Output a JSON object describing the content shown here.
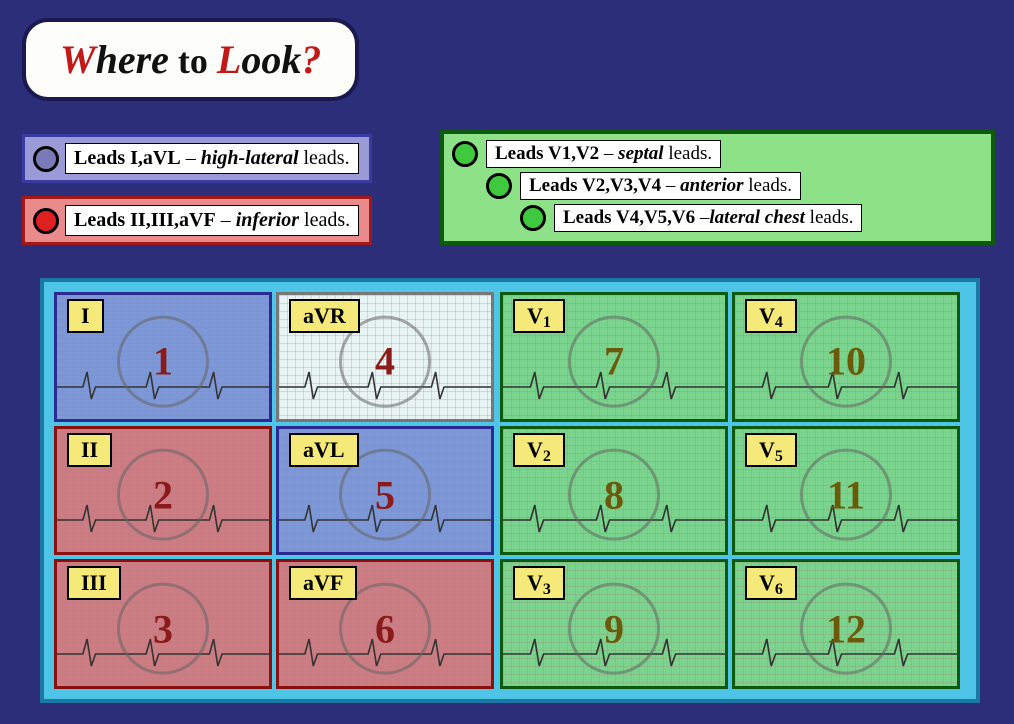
{
  "title": {
    "w": "W",
    "here": "here",
    "to": " to ",
    "l": "L",
    "ook": "ook",
    "q": "?",
    "color_red": "#c21818",
    "color_black": "#111"
  },
  "legend_purple": {
    "bg": "#9a9ad6",
    "border": "#3a3aa0",
    "dot_fill": "#7a7ab8",
    "text_leads": "Leads I,aVL",
    "text_dash": " – ",
    "text_em": "high-lateral",
    "text_end": " leads."
  },
  "legend_red": {
    "bg": "#eb8a8a",
    "border": "#a01818",
    "dot_fill": "#e02020",
    "text_leads": "Leads II,III,aVF",
    "text_dash": " – ",
    "text_em": "inferior",
    "text_end": " leads."
  },
  "legend_green": {
    "bg": "#8de187",
    "border": "#0e5a0e",
    "dot_fill": "#3ec93e",
    "lines": [
      {
        "leads": "Leads V1,V2",
        "dash": " – ",
        "em": "septal",
        "end": " leads.",
        "indent": 0
      },
      {
        "leads": "Leads V2,V3,V4",
        "dash": " – ",
        "em": "anterior",
        "end": " leads.",
        "indent": 34
      },
      {
        "leads": "Leads V4,V5,V6",
        "dash": " –",
        "em": "lateral chest",
        "end": " leads.",
        "indent": 68
      }
    ]
  },
  "colors": {
    "purple_bg": "rgba(140,140,210,0.78)",
    "purple_border": "#2a2a90",
    "red_bg": "rgba(232,110,110,0.82)",
    "red_border": "#8a1010",
    "white_bg": "rgba(250,248,244,0.9)",
    "white_border": "#777",
    "green_bg": "rgba(130,215,125,0.85)",
    "green_border": "#0d5a0d",
    "num_red": "#8b1a1a",
    "num_olive": "#6b5a0a"
  },
  "cells_left": [
    {
      "label": "I",
      "num": "1",
      "bg": "purple",
      "numcol": "num_red"
    },
    {
      "label": "aVR",
      "num": "4",
      "bg": "white",
      "numcol": "num_red"
    },
    {
      "label": "II",
      "num": "2",
      "bg": "red",
      "numcol": "num_red"
    },
    {
      "label": "aVL",
      "num": "5",
      "bg": "purple",
      "numcol": "num_red"
    },
    {
      "label": "III",
      "num": "3",
      "bg": "red",
      "numcol": "num_red"
    },
    {
      "label": "aVF",
      "num": "6",
      "bg": "red",
      "numcol": "num_red"
    }
  ],
  "cells_right": [
    {
      "label": "V1",
      "sub": "1",
      "num": "7",
      "bg": "green",
      "numcol": "num_olive"
    },
    {
      "label": "V4",
      "sub": "4",
      "num": "10",
      "bg": "green",
      "numcol": "num_olive"
    },
    {
      "label": "V2",
      "sub": "2",
      "num": "8",
      "bg": "green",
      "numcol": "num_olive"
    },
    {
      "label": "V5",
      "sub": "5",
      "num": "11",
      "bg": "green",
      "numcol": "num_olive"
    },
    {
      "label": "V3",
      "sub": "3",
      "num": "9",
      "bg": "green",
      "numcol": "num_olive"
    },
    {
      "label": "V6",
      "sub": "6",
      "num": "12",
      "bg": "green",
      "numcol": "num_olive"
    }
  ]
}
